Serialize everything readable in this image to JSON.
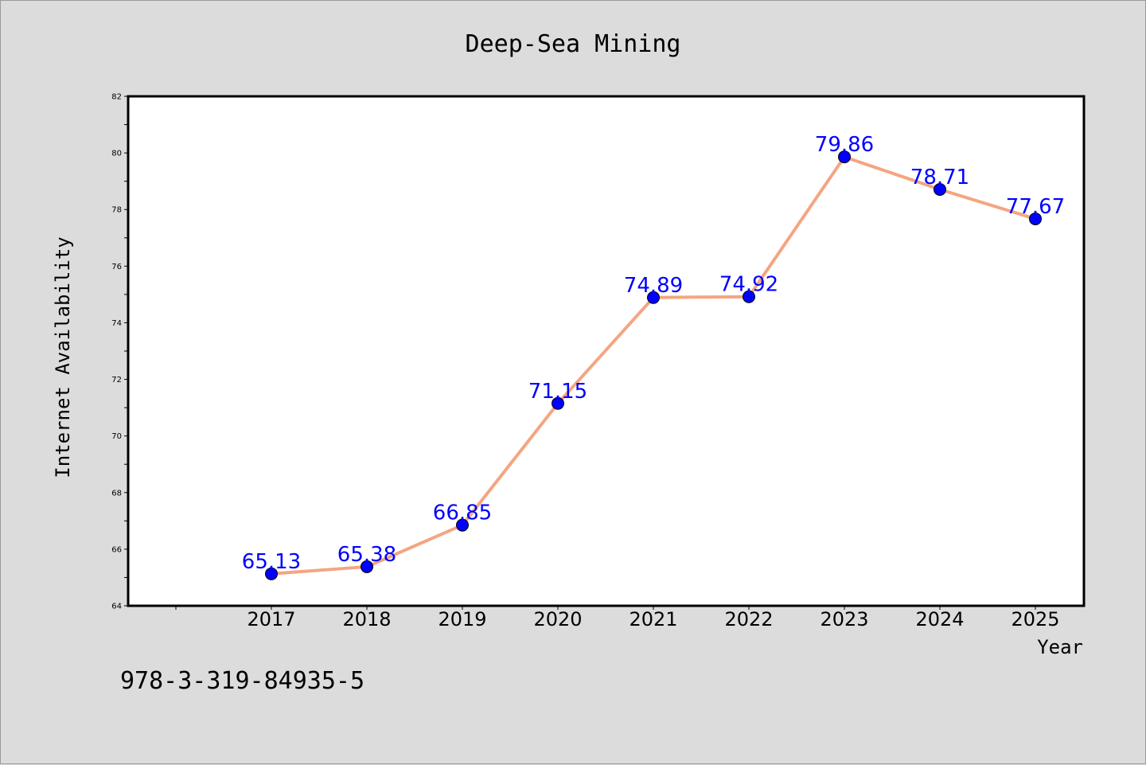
{
  "chart_data": {
    "type": "line",
    "title": "Deep-Sea Mining",
    "xlabel": "Year",
    "ylabel": "Internet Availability",
    "categories": [
      "2017",
      "2018",
      "2019",
      "2020",
      "2021",
      "2022",
      "2023",
      "2024",
      "2025"
    ],
    "series": [
      {
        "values": [
          65.13,
          65.38,
          66.85,
          71.15,
          74.89,
          74.92,
          79.86,
          78.71,
          77.67
        ],
        "line_color": "#f4a582",
        "marker_color": "#0000ff"
      }
    ],
    "data_labels": [
      "65.13",
      "65.38",
      "66.85",
      "71.15",
      "74.89",
      "74.92",
      "79.86",
      "78.71",
      "77.67"
    ],
    "ylim": [
      64,
      82
    ],
    "yticks": [
      "64",
      "66",
      "68",
      "70",
      "72",
      "74",
      "76",
      "78",
      "80",
      "82"
    ],
    "grid": false,
    "legend": "none",
    "label_color": "#0000ff"
  },
  "footer": {
    "isbn": "978-3-319-84935-5"
  },
  "colors": {
    "background": "#dcdcdc",
    "plot_background": "#ffffff",
    "axes": "#000000"
  }
}
